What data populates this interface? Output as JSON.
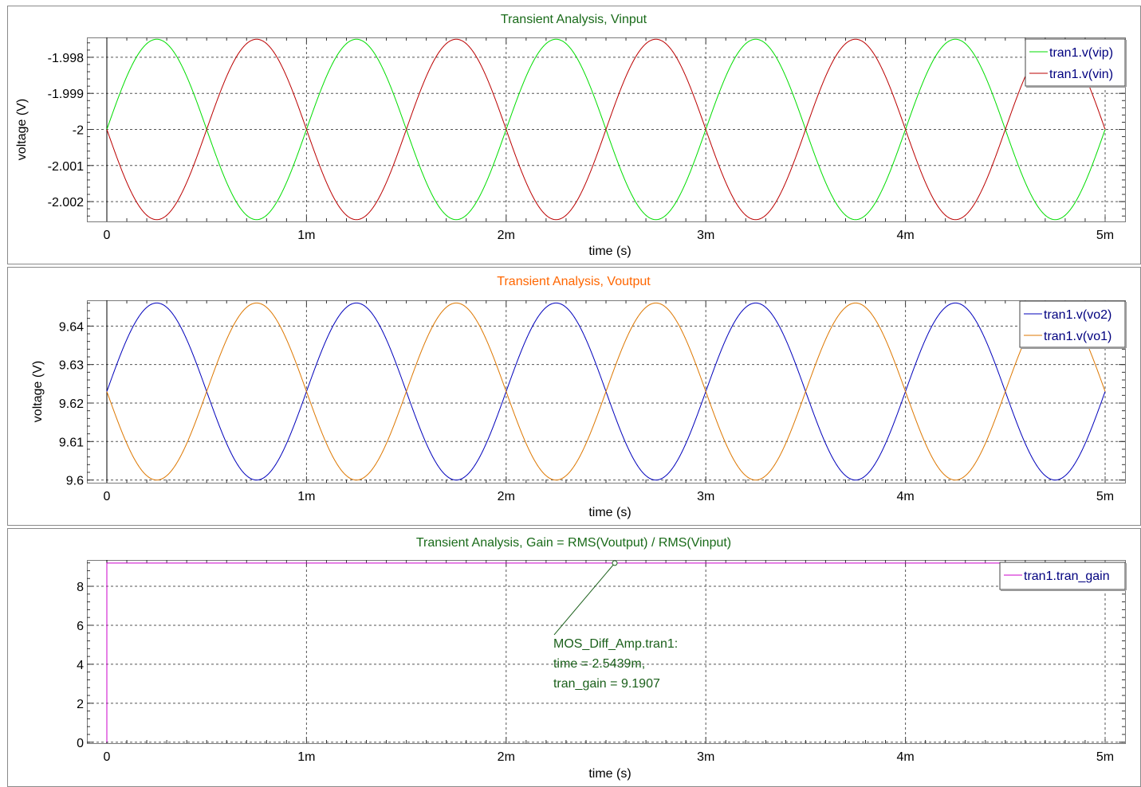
{
  "chart_data": [
    {
      "type": "line",
      "title": "Transient Analysis, Vinput",
      "title_color": "#1a6b1a",
      "xlabel": "time (s)",
      "ylabel": "voltage (V)",
      "xlim": [
        0,
        0.005
      ],
      "ylim": [
        -2.00255,
        -1.99745
      ],
      "xticks": [
        0,
        0.001,
        0.002,
        0.003,
        0.004,
        0.005
      ],
      "xtick_labels": [
        "0",
        "1m",
        "2m",
        "3m",
        "4m",
        "5m"
      ],
      "yticks": [
        -1.998,
        -1.999,
        -2,
        -2.001,
        -2.002
      ],
      "ytick_labels": [
        "-1.998",
        "-1.999",
        "-2",
        "-2.001",
        "-2.002"
      ],
      "grid": true,
      "legend_position": "top-right",
      "legend_text_color": "#00007f",
      "series": [
        {
          "name": "tran1.v(vip)",
          "color": "#00dd00",
          "offset": -2,
          "amplitude": 0.0025,
          "frequency": 1000,
          "phase": 0
        },
        {
          "name": "tran1.v(vin)",
          "color": "#bb0000",
          "offset": -2,
          "amplitude": -0.0025,
          "frequency": 1000,
          "phase": 0
        }
      ]
    },
    {
      "type": "line",
      "title": "Transient Analysis, Voutput",
      "title_color": "#ff6600",
      "xlabel": "time (s)",
      "ylabel": "voltage (V)",
      "xlim": [
        0,
        0.005
      ],
      "ylim": [
        9.5993,
        9.6467
      ],
      "xticks": [
        0,
        0.001,
        0.002,
        0.003,
        0.004,
        0.005
      ],
      "xtick_labels": [
        "0",
        "1m",
        "2m",
        "3m",
        "4m",
        "5m"
      ],
      "yticks": [
        9.64,
        9.63,
        9.62,
        9.61,
        9.6
      ],
      "ytick_labels": [
        "9.64",
        "9.63",
        "9.62",
        "9.61",
        "9.6"
      ],
      "grid": true,
      "legend_position": "top-right",
      "legend_text_color": "#00007f",
      "series": [
        {
          "name": "tran1.v(vo2)",
          "color": "#0000bb",
          "offset": 9.623,
          "amplitude": 0.023,
          "frequency": 1000,
          "phase": 0
        },
        {
          "name": "tran1.v(vo1)",
          "color": "#dd7700",
          "offset": 9.623,
          "amplitude": -0.023,
          "frequency": 1000,
          "phase": 0
        }
      ]
    },
    {
      "type": "line",
      "title": "Transient Analysis, Gain = RMS(Voutput) / RMS(Vinput)",
      "title_color": "#1a6b1a",
      "xlabel": "time (s)",
      "ylabel": "",
      "xlim": [
        0,
        0.005
      ],
      "ylim": [
        -0.05,
        9.35
      ],
      "xticks": [
        0,
        0.001,
        0.002,
        0.003,
        0.004,
        0.005
      ],
      "xtick_labels": [
        "0",
        "1m",
        "2m",
        "3m",
        "4m",
        "5m"
      ],
      "yticks": [
        8,
        6,
        4,
        2,
        0
      ],
      "ytick_labels": [
        "8",
        "6",
        "4",
        "2",
        "0"
      ],
      "grid": true,
      "legend_position": "top-right",
      "legend_text_color": "#00007f",
      "series": [
        {
          "name": "tran1.tran_gain",
          "color": "#cc00cc",
          "x": [
            0,
            0,
            0.005
          ],
          "y": [
            0,
            9.1907,
            9.1907
          ]
        }
      ],
      "annotation": {
        "x": 0.0025439,
        "y": 9.1907,
        "lines": [
          "MOS_Diff_Amp.tran1:",
          "time = 2.5439m,",
          "tran_gain = 9.1907"
        ],
        "color": "#1a5f1a"
      }
    }
  ]
}
